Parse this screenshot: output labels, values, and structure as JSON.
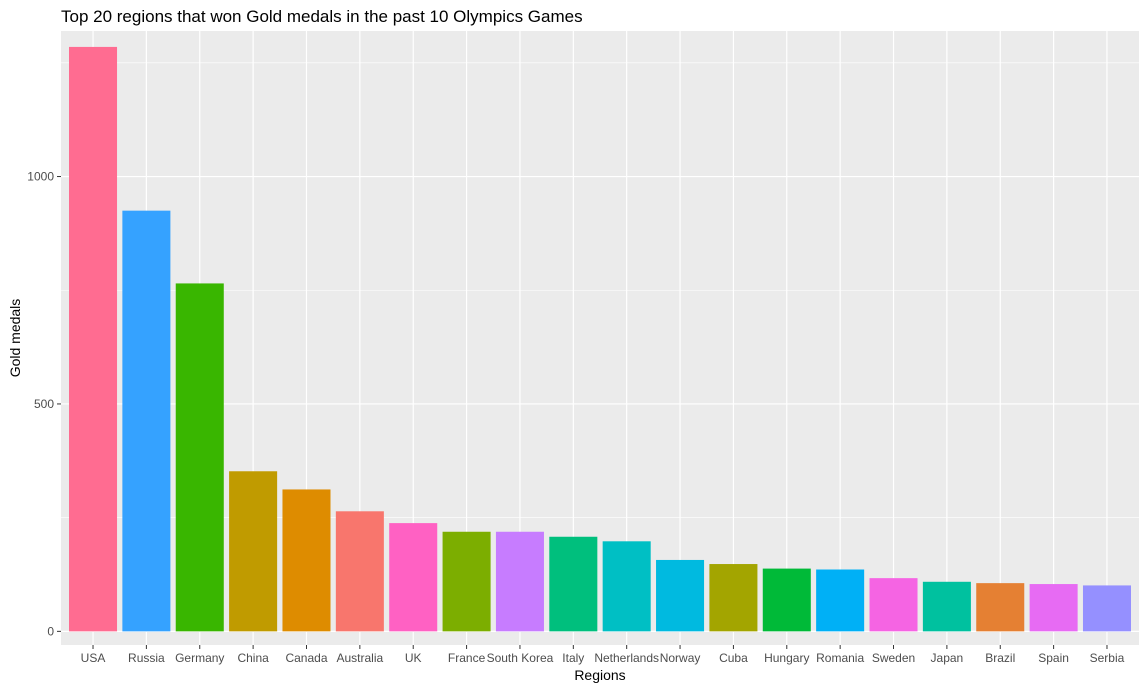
{
  "chart_data": {
    "type": "bar",
    "title": "Top 20 regions that won Gold medals in the past 10 Olympics Games",
    "xlabel": "Regions",
    "ylabel": "Gold medals",
    "ylim": [
      -30,
      1320
    ],
    "yticks": [
      0,
      500,
      1000
    ],
    "grid": true,
    "legend": "none",
    "categories": [
      "USA",
      "Russia",
      "Germany",
      "China",
      "Canada",
      "Australia",
      "UK",
      "France",
      "South Korea",
      "Italy",
      "Netherlands",
      "Norway",
      "Cuba",
      "Hungary",
      "Romania",
      "Sweden",
      "Japan",
      "Brazil",
      "Spain",
      "Serbia"
    ],
    "values": [
      1285,
      925,
      765,
      352,
      312,
      264,
      238,
      219,
      219,
      208,
      198,
      157,
      148,
      138,
      136,
      117,
      109,
      106,
      104,
      101
    ],
    "colors": [
      "#FF6C91",
      "#35A2FF",
      "#39B600",
      "#C09B00",
      "#DE8C00",
      "#F8766D",
      "#FF61C3",
      "#7CAE00",
      "#C77CFF",
      "#00BF7D",
      "#00BFC4",
      "#00BAE0",
      "#A3A500",
      "#00BA38",
      "#00B0F6",
      "#F564E3",
      "#00C19F",
      "#E58033",
      "#E76BF3",
      "#9590FF"
    ],
    "panel_color": "#EBEBEB",
    "grid_color": "#FFFFFF"
  }
}
